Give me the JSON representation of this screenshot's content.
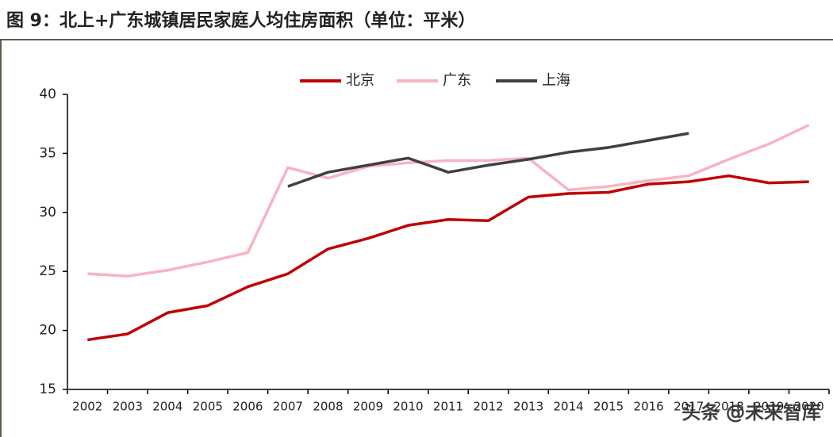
{
  "chart_data": {
    "type": "line",
    "title": "图 9：北上+广东城镇居民家庭人均住房面积（单位：平米）",
    "categories": [
      "2002",
      "2003",
      "2004",
      "2005",
      "2006",
      "2007",
      "2008",
      "2009",
      "2010",
      "2011",
      "2012",
      "2013",
      "2014",
      "2015",
      "2016",
      "2017",
      "2018",
      "2019",
      "2020"
    ],
    "series": [
      {
        "name": "北京",
        "color": "#c00000",
        "values": [
          19.2,
          19.7,
          21.5,
          22.1,
          23.7,
          24.8,
          26.9,
          27.8,
          28.9,
          29.4,
          29.3,
          31.3,
          31.6,
          31.7,
          32.4,
          32.6,
          33.1,
          32.5,
          32.6
        ]
      },
      {
        "name": "广东",
        "color": "#f7b4c0",
        "values": [
          24.8,
          24.6,
          25.1,
          25.8,
          26.6,
          33.8,
          32.9,
          33.9,
          34.2,
          34.4,
          34.4,
          34.6,
          31.9,
          32.2,
          32.7,
          33.1,
          34.5,
          35.8,
          37.4
        ]
      },
      {
        "name": "上海",
        "color": "#404040",
        "values": [
          null,
          null,
          null,
          null,
          null,
          32.2,
          33.4,
          34.0,
          34.6,
          33.4,
          34.0,
          34.5,
          35.1,
          35.5,
          36.1,
          36.7,
          null,
          null,
          null
        ]
      }
    ],
    "ylim": [
      15,
      40
    ],
    "yticks": [
      15,
      20,
      25,
      30,
      35,
      40
    ],
    "legend": "top",
    "watermark": "头条 @未来智库"
  }
}
